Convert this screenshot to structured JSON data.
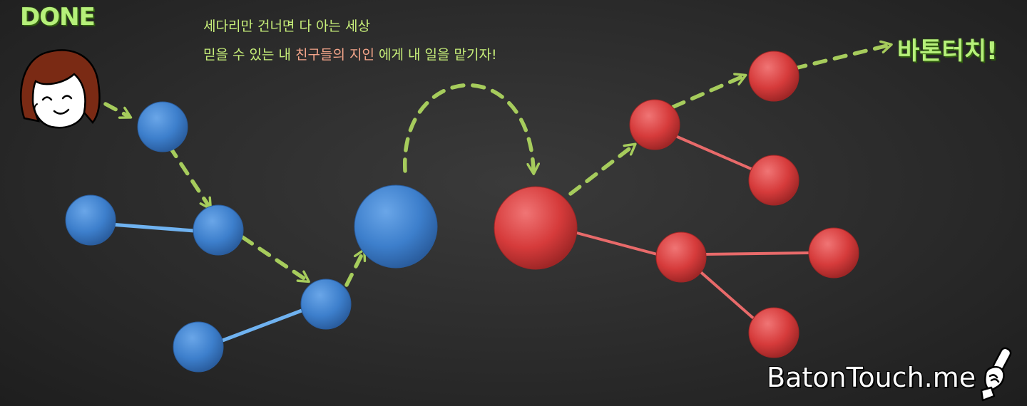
{
  "status_label": "DONE",
  "tagline": {
    "line1": "세다리만 건너면 다 아는 세상",
    "line2_a": "믿을 수 있는 내 ",
    "line2_b": "친구들의 지인",
    "line2_c": " 에게 내 일을 맡기자!"
  },
  "handoff_label": "바톤터치!",
  "brand": "BatonTouch.me",
  "colors": {
    "blue_node": "#3d7fcc",
    "red_node": "#d63b3b",
    "arrow": "#a6cc5c",
    "blue_link": "#6fb2f0",
    "red_link": "#e86a6a",
    "label_green": "#b6f07a",
    "highlight": "#f4a58a"
  },
  "icons": [
    "avatar-girl-icon",
    "baton-hand-icon"
  ]
}
